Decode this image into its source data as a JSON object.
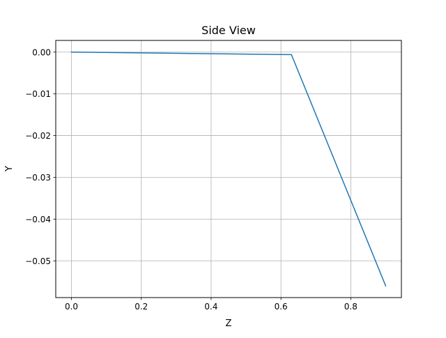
{
  "chart_data": {
    "type": "line",
    "title": "Side View",
    "xlabel": "Z",
    "ylabel": "Y",
    "xlim": [
      -0.045,
      0.945
    ],
    "ylim": [
      -0.0588,
      0.0028
    ],
    "grid": true,
    "x_ticks": [
      0.0,
      0.2,
      0.4,
      0.6,
      0.8
    ],
    "x_tick_labels": [
      "0.0",
      "0.2",
      "0.4",
      "0.6",
      "0.8"
    ],
    "y_ticks": [
      0.0,
      -0.01,
      -0.02,
      -0.03,
      -0.04,
      -0.05
    ],
    "y_tick_labels": [
      "0.00",
      "−0.01",
      "−0.02",
      "−0.03",
      "−0.04",
      "−0.05"
    ],
    "series": [
      {
        "color": "#1f77b4",
        "x": [
          0.0,
          0.63,
          0.9
        ],
        "y": [
          0.0,
          -0.0006,
          -0.056
        ]
      }
    ]
  }
}
